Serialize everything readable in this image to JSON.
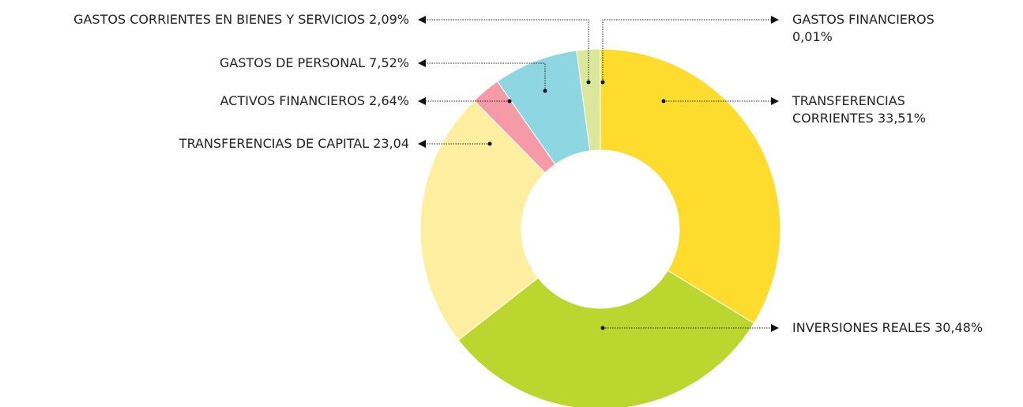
{
  "chart_data": {
    "type": "pie",
    "categories": [
      "TRANSFERENCIAS CORRIENTES",
      "INVERSIONES REALES",
      "TRANSFERENCIAS DE CAPITAL",
      "ACTIVOS FINANCIEROS",
      "GASTOS DE PERSONAL",
      "GASTOS CORRIENTES EN BIENES Y SERVICIOS",
      "GASTOS FINANCIEROS"
    ],
    "values": [
      33.51,
      30.48,
      23.04,
      2.64,
      7.52,
      2.09,
      0.01
    ],
    "value_labels": [
      "33,51%",
      "30,48%",
      "23,04",
      "2,64%",
      "7,52%",
      "2,09%",
      "0,01%"
    ],
    "colors": [
      "#fddc2e",
      "#bcd630",
      "#feeea0",
      "#f59ba8",
      "#8fd6e3",
      "#dbe79a",
      "#e05a6e"
    ]
  }
}
